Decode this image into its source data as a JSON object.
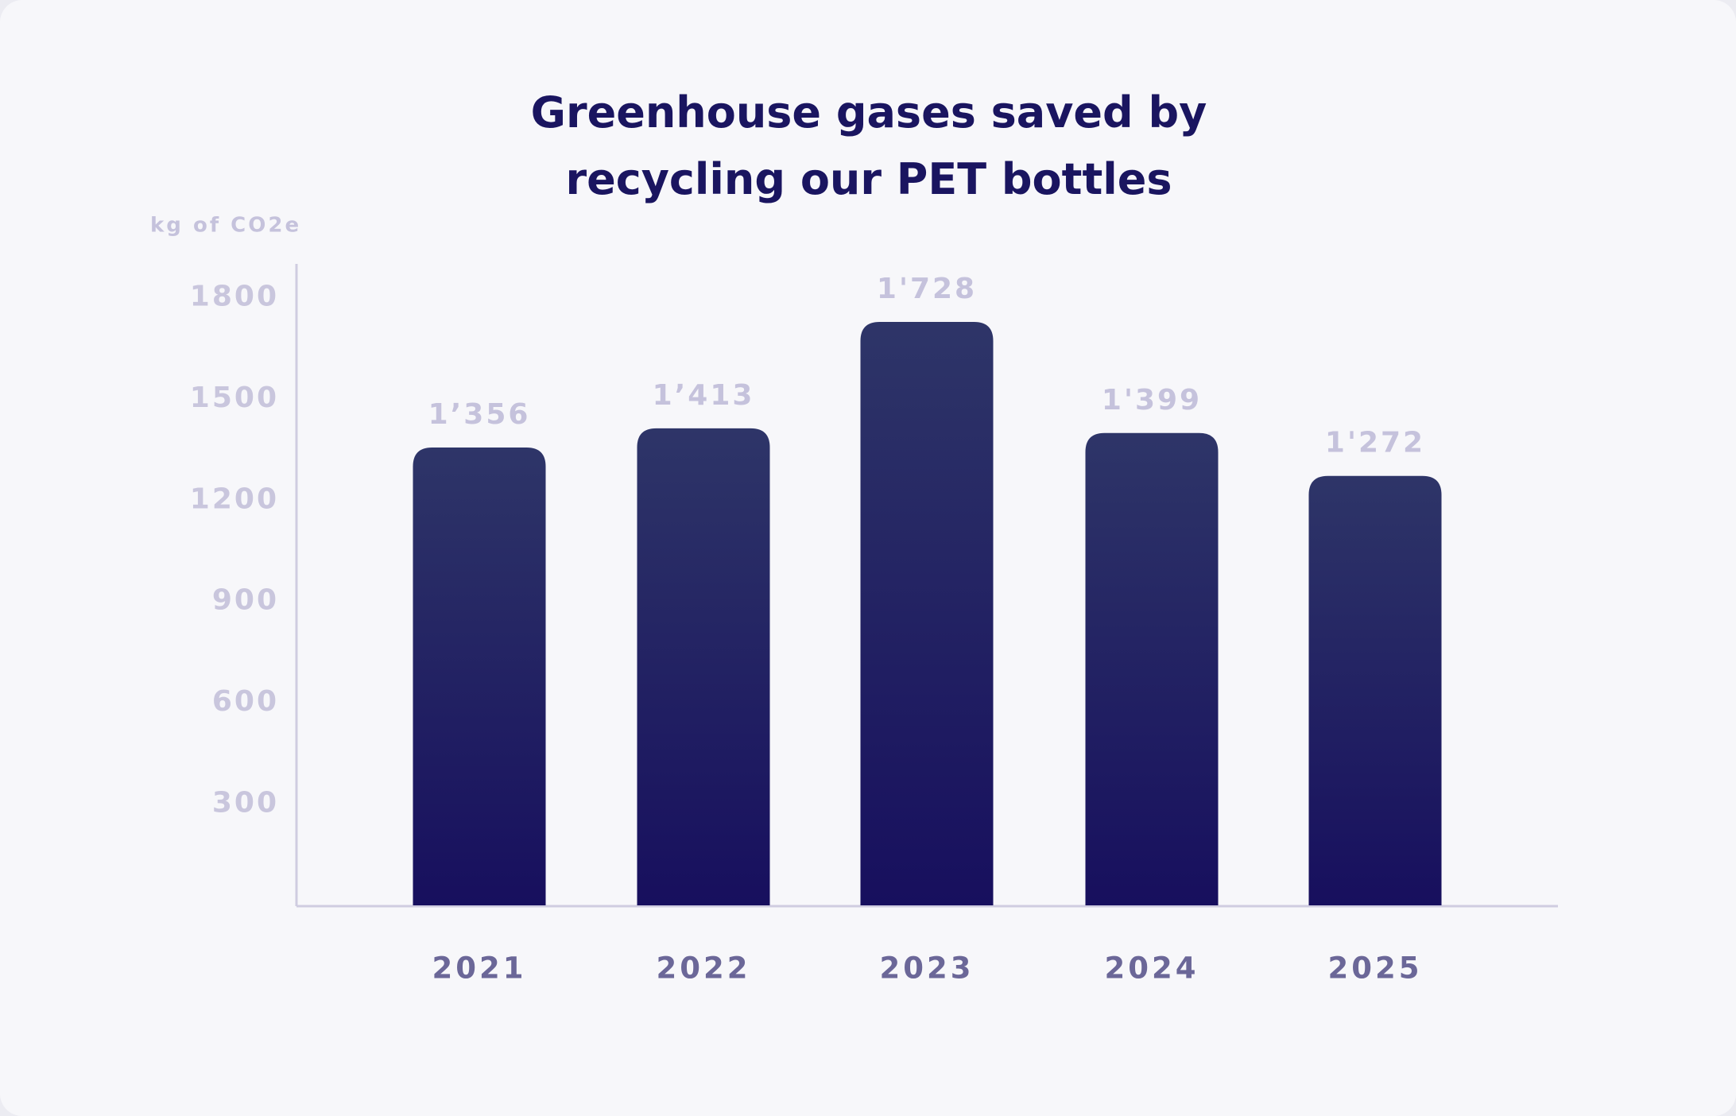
{
  "chart_data": {
    "type": "bar",
    "title": "Greenhouse gases saved by recycling our PET bottles",
    "y_label": "kg of CO2e",
    "categories": [
      "2021",
      "2022",
      "2023",
      "2024",
      "2025"
    ],
    "values": [
      1356,
      1413,
      1728,
      1399,
      1272
    ],
    "value_labels": [
      "1’356",
      "1’413",
      "1'728",
      "1'399",
      "1'272"
    ],
    "color": "#1a1560",
    "ylim": [
      0,
      1900
    ],
    "yticks": [
      300,
      600,
      900,
      1200,
      1500,
      1800
    ],
    "grid": false
  }
}
